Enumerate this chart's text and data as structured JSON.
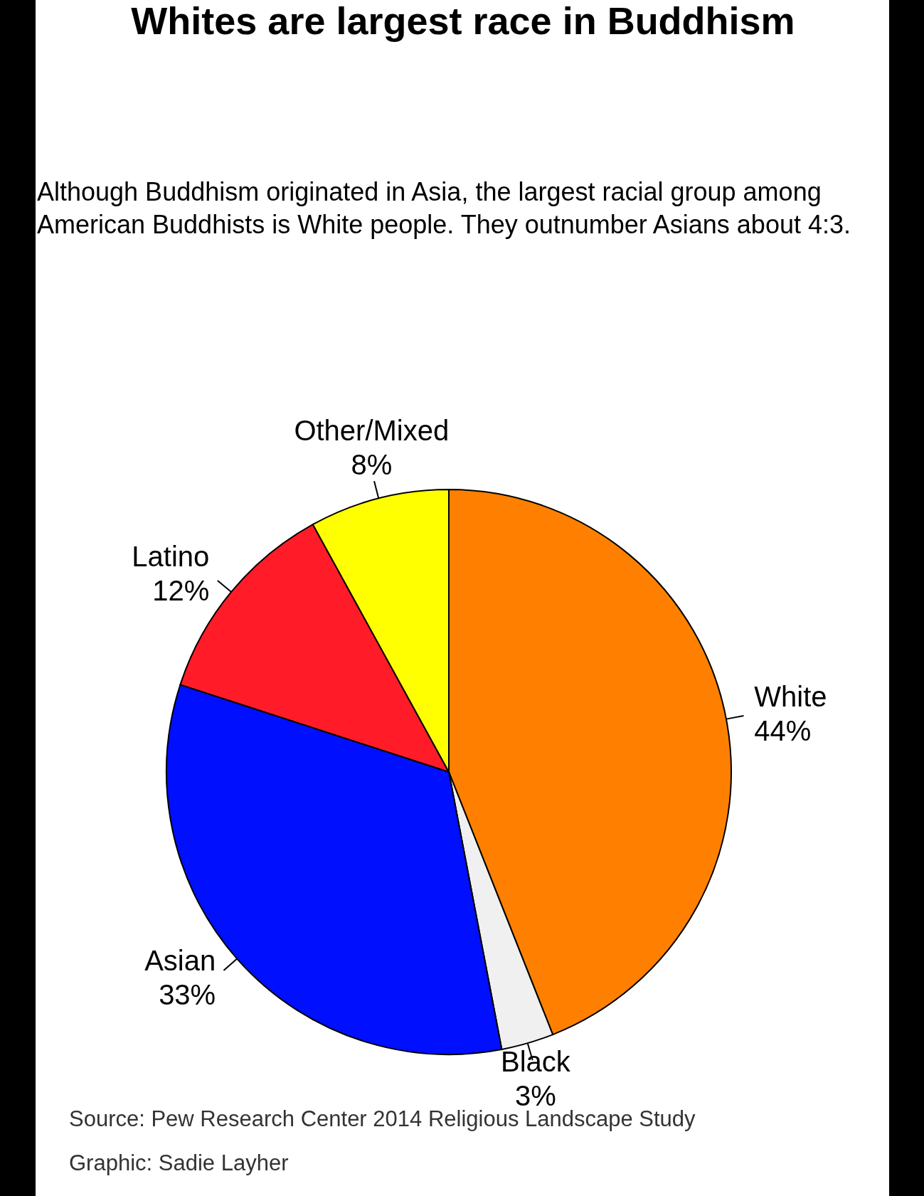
{
  "chart_data": {
    "type": "pie",
    "title": "Whites are largest race in Buddhism",
    "subtitle": "Although Buddhism originated in Asia, the largest racial group among American Buddhists is White people. They outnumber Asians about 4:3.",
    "categories": [
      "White",
      "Black",
      "Asian",
      "Latino",
      "Other/Mixed"
    ],
    "values": [
      44,
      3,
      33,
      12,
      8
    ],
    "colors": [
      "#ff8000",
      "#f0f0f0",
      "#0010ff",
      "#ff1c28",
      "#ffff00"
    ],
    "value_labels": [
      "44%",
      "3%",
      "33%",
      "12%",
      "8%"
    ],
    "annotations": [
      "Source: Pew Research Center 2014 Religious Landscape Study",
      "Graphic: Sadie Layher"
    ]
  }
}
